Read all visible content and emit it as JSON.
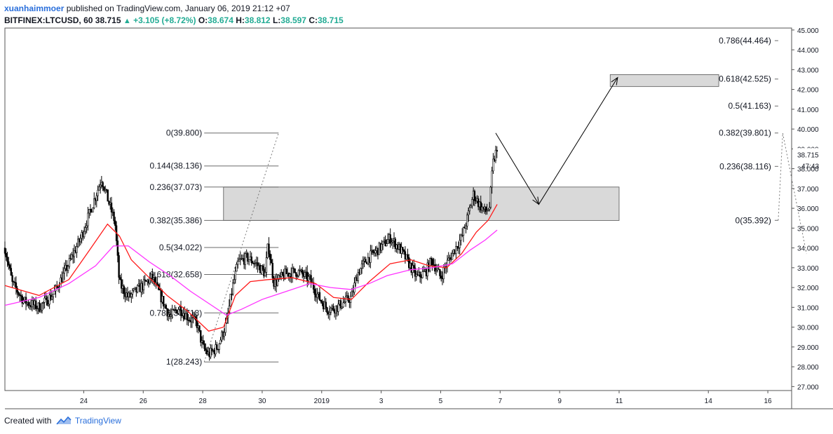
{
  "header": {
    "user": "xuanhaimmoer",
    "published_text": "published on TradingView.com, January 06, 2019 21:12 +07",
    "symbol": "BITFINEX:LTCUSD, 60",
    "last": "38.715",
    "change": "+3.105 (+8.72%)",
    "o_label": "O:",
    "o_value": "38.674",
    "h_label": "H:",
    "h_value": "38.812",
    "l_label": "L:",
    "l_value": "38.597",
    "c_label": "C:",
    "c_value": "38.715"
  },
  "footer": {
    "created_with": "Created with",
    "brand": "TradingView"
  },
  "colors": {
    "ema_fast": "#ff1a1a",
    "ema_slow": "#ff33ff",
    "zone_fill": "#d9d9d9",
    "accent": "#2a6fdb",
    "up": "#22ab94"
  },
  "chart_data": {
    "type": "candlestick",
    "symbol": "BITFINEX:LTCUSD",
    "interval": "60",
    "y_axis": {
      "range": [
        26.8,
        45.1
      ],
      "ticks": [
        "27.000",
        "28.000",
        "29.000",
        "30.000",
        "31.000",
        "32.000",
        "33.000",
        "34.000",
        "35.000",
        "36.000",
        "37.000",
        "38.000",
        "39.000",
        "40.000",
        "41.000",
        "42.000",
        "43.000",
        "44.000",
        "45.000"
      ],
      "last_price_label": "38.715",
      "countdown_label": "47:43"
    },
    "x_axis": {
      "ticks": [
        {
          "label": "24",
          "day": 24
        },
        {
          "label": "26",
          "day": 26
        },
        {
          "label": "28",
          "day": 28
        },
        {
          "label": "30",
          "day": 30
        },
        {
          "label": "2019",
          "day": 32
        },
        {
          "label": "3",
          "day": 34
        },
        {
          "label": "5",
          "day": 36
        },
        {
          "label": "7",
          "day": 38
        },
        {
          "label": "9",
          "day": 40
        },
        {
          "label": "11",
          "day": 42
        },
        {
          "label": "14",
          "day": 45
        },
        {
          "label": "16",
          "day": 47
        }
      ],
      "start_day": 21.35,
      "end_day": 47.8
    },
    "price_path": [
      [
        21.35,
        34.0
      ],
      [
        21.6,
        32.2
      ],
      [
        22.0,
        31.3
      ],
      [
        22.5,
        31.0
      ],
      [
        23.0,
        31.7
      ],
      [
        23.5,
        33.2
      ],
      [
        23.9,
        34.5
      ],
      [
        24.3,
        36.2
      ],
      [
        24.6,
        37.5
      ],
      [
        24.9,
        36.0
      ],
      [
        25.05,
        35.3
      ],
      [
        25.2,
        32.2
      ],
      [
        25.5,
        31.5
      ],
      [
        25.9,
        32.0
      ],
      [
        26.3,
        32.5
      ],
      [
        26.6,
        31.5
      ],
      [
        26.9,
        30.5
      ],
      [
        27.2,
        31.0
      ],
      [
        27.5,
        30.5
      ],
      [
        27.8,
        30.2
      ],
      [
        28.0,
        29.0
      ],
      [
        28.2,
        28.6
      ],
      [
        28.5,
        29.0
      ],
      [
        28.8,
        30.2
      ],
      [
        29.0,
        32.0
      ],
      [
        29.2,
        33.3
      ],
      [
        29.5,
        33.5
      ],
      [
        29.8,
        33.2
      ],
      [
        30.1,
        32.7
      ],
      [
        30.2,
        34.2
      ],
      [
        30.4,
        32.2
      ],
      [
        30.8,
        32.7
      ],
      [
        31.2,
        32.8
      ],
      [
        31.6,
        32.4
      ],
      [
        31.9,
        31.5
      ],
      [
        32.2,
        30.9
      ],
      [
        32.5,
        31.0
      ],
      [
        32.8,
        31.3
      ],
      [
        33.0,
        31.5
      ],
      [
        33.2,
        32.7
      ],
      [
        33.5,
        33.4
      ],
      [
        33.8,
        33.8
      ],
      [
        34.1,
        34.2
      ],
      [
        34.3,
        34.5
      ],
      [
        34.6,
        34.0
      ],
      [
        34.9,
        33.3
      ],
      [
        35.2,
        32.5
      ],
      [
        35.5,
        32.8
      ],
      [
        35.7,
        33.4
      ],
      [
        36.0,
        32.5
      ],
      [
        36.2,
        33.2
      ],
      [
        36.5,
        34.0
      ],
      [
        36.7,
        34.5
      ],
      [
        36.9,
        35.5
      ],
      [
        37.1,
        36.7
      ],
      [
        37.3,
        36.2
      ],
      [
        37.5,
        35.8
      ],
      [
        37.65,
        36.1
      ],
      [
        37.75,
        38.2
      ],
      [
        37.85,
        38.8
      ],
      [
        37.9,
        38.7
      ]
    ],
    "ema_fast": [
      [
        21.35,
        32.1
      ],
      [
        22.5,
        31.6
      ],
      [
        23.5,
        32.4
      ],
      [
        24.2,
        33.9
      ],
      [
        24.8,
        35.2
      ],
      [
        25.2,
        34.6
      ],
      [
        25.6,
        33.4
      ],
      [
        26.2,
        32.5
      ],
      [
        26.8,
        31.6
      ],
      [
        27.5,
        30.8
      ],
      [
        28.2,
        29.8
      ],
      [
        28.7,
        30.0
      ],
      [
        29.1,
        31.6
      ],
      [
        29.6,
        32.3
      ],
      [
        30.2,
        32.4
      ],
      [
        31.0,
        32.5
      ],
      [
        31.8,
        32.2
      ],
      [
        32.4,
        31.5
      ],
      [
        33.0,
        31.4
      ],
      [
        33.6,
        32.3
      ],
      [
        34.3,
        33.2
      ],
      [
        35.0,
        33.4
      ],
      [
        35.6,
        33.1
      ],
      [
        36.2,
        33.0
      ],
      [
        36.7,
        33.7
      ],
      [
        37.2,
        34.8
      ],
      [
        37.6,
        35.4
      ],
      [
        37.9,
        36.2
      ]
    ],
    "ema_slow": [
      [
        21.35,
        31.1
      ],
      [
        22.5,
        31.5
      ],
      [
        23.5,
        32.2
      ],
      [
        24.4,
        33.1
      ],
      [
        25.0,
        34.1
      ],
      [
        25.5,
        34.1
      ],
      [
        26.2,
        33.3
      ],
      [
        26.9,
        32.6
      ],
      [
        27.6,
        31.8
      ],
      [
        28.3,
        31.1
      ],
      [
        28.8,
        30.6
      ],
      [
        29.3,
        30.9
      ],
      [
        30.0,
        31.4
      ],
      [
        30.8,
        31.8
      ],
      [
        31.6,
        32.2
      ],
      [
        32.3,
        32.0
      ],
      [
        33.0,
        31.9
      ],
      [
        33.6,
        32.2
      ],
      [
        34.2,
        32.6
      ],
      [
        35.0,
        32.9
      ],
      [
        35.7,
        33.0
      ],
      [
        36.4,
        33.2
      ],
      [
        37.0,
        33.9
      ],
      [
        37.5,
        34.4
      ],
      [
        37.9,
        34.9
      ]
    ],
    "fib_retracement": {
      "x_range": [
        28.05,
        30.55
      ],
      "levels": [
        {
          "label": "0(39.800)",
          "price": 39.8
        },
        {
          "label": "0.144(38.136)",
          "price": 38.136
        },
        {
          "label": "0.236(37.073)",
          "price": 37.073
        },
        {
          "label": "0.382(35.386)",
          "price": 35.386
        },
        {
          "label": "0.5(34.022)",
          "price": 34.022
        },
        {
          "label": "0.618(32.658)",
          "price": 32.658
        },
        {
          "label": "0.786(30.718)",
          "price": 30.718
        },
        {
          "label": "1(28.243)",
          "price": 28.243
        }
      ],
      "trendline": [
        [
          28.05,
          28.243
        ],
        [
          30.55,
          39.8
        ]
      ]
    },
    "fib_extension": {
      "x_range": [
        46.2,
        47.35
      ],
      "levels": [
        {
          "label": "0.786(44.464)",
          "price": 44.464
        },
        {
          "label": "0.618(42.525)",
          "price": 42.525
        },
        {
          "label": "0.5(41.163)",
          "price": 41.163
        },
        {
          "label": "0.382(39.801)",
          "price": 39.801
        },
        {
          "label": "0.236(38.116)",
          "price": 38.116
        },
        {
          "label": "0(35.392)",
          "price": 35.392
        }
      ],
      "dashed_path": [
        [
          47.35,
          35.392
        ],
        [
          47.5,
          39.8
        ],
        [
          48.3,
          33.7
        ]
      ]
    },
    "zones": [
      {
        "x_range": [
          28.7,
          42.0
        ],
        "price_range": [
          35.386,
          37.073
        ]
      },
      {
        "x_range": [
          41.7,
          45.35
        ],
        "price_range": [
          42.15,
          42.75
        ]
      }
    ],
    "projection_arrows": [
      [
        37.85,
        39.8
      ],
      [
        39.3,
        36.2
      ],
      [
        41.95,
        42.6
      ]
    ]
  }
}
